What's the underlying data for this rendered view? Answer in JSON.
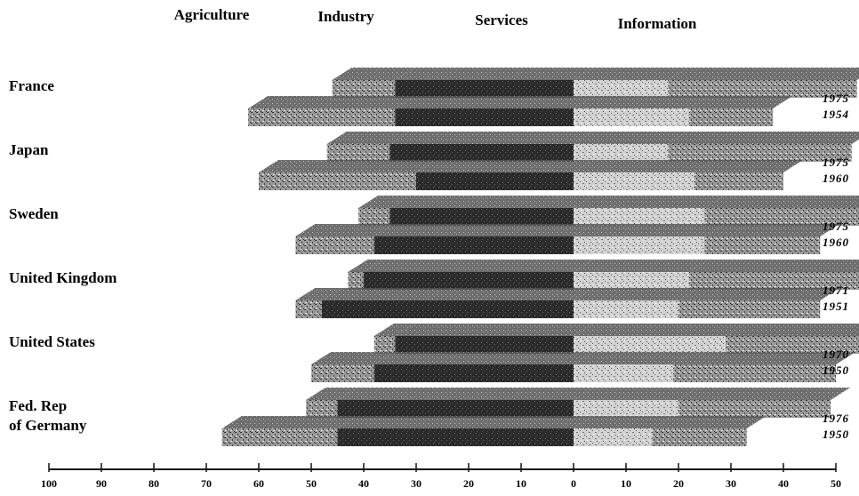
{
  "chart_data": {
    "type": "bar",
    "subtype": "diverging stacked 3d bar, two years per country",
    "sectors": [
      "Agriculture",
      "Industry",
      "Services",
      "Information"
    ],
    "countries": [
      {
        "name": "France",
        "years": [
          {
            "year": "1975",
            "agriculture": 12,
            "industry": 34,
            "services": 18,
            "information": 36
          },
          {
            "year": "1954",
            "agriculture": 28,
            "industry": 34,
            "services": 22,
            "information": 16
          }
        ]
      },
      {
        "name": "Japan",
        "years": [
          {
            "year": "1975",
            "agriculture": 12,
            "industry": 35,
            "services": 18,
            "information": 35
          },
          {
            "year": "1960",
            "agriculture": 30,
            "industry": 30,
            "services": 23,
            "information": 17
          }
        ]
      },
      {
        "name": "Sweden",
        "years": [
          {
            "year": "1975",
            "agriculture": 6,
            "industry": 35,
            "services": 25,
            "information": 34
          },
          {
            "year": "1960",
            "agriculture": 15,
            "industry": 38,
            "services": 25,
            "information": 22
          }
        ]
      },
      {
        "name": "United Kingdom",
        "years": [
          {
            "year": "1971",
            "agriculture": 3,
            "industry": 40,
            "services": 22,
            "information": 35
          },
          {
            "year": "1951",
            "agriculture": 5,
            "industry": 48,
            "services": 20,
            "information": 27
          }
        ]
      },
      {
        "name": "United States",
        "years": [
          {
            "year": "1970",
            "agriculture": 4,
            "industry": 34,
            "services": 29,
            "information": 33
          },
          {
            "year": "1950",
            "agriculture": 12,
            "industry": 38,
            "services": 19,
            "information": 31
          }
        ]
      },
      {
        "name": "Fed. Rep|of Germany",
        "years": [
          {
            "year": "1976",
            "agriculture": 6,
            "industry": 45,
            "services": 20,
            "information": 29
          },
          {
            "year": "1950",
            "agriculture": 22,
            "industry": 45,
            "services": 15,
            "information": 18
          }
        ]
      }
    ],
    "x_ticks_left": [
      "100",
      "90",
      "80",
      "70",
      "60",
      "50",
      "40",
      "30",
      "20",
      "10",
      "0"
    ],
    "x_ticks_right": [
      "10",
      "20",
      "30",
      "40",
      "50"
    ],
    "xlim": [
      -100,
      50
    ],
    "grid": false,
    "legend": "none"
  }
}
